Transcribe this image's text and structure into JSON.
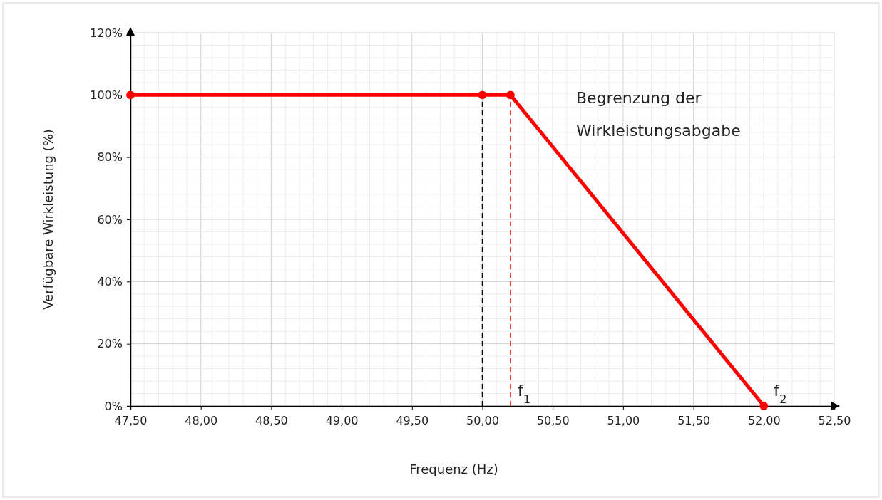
{
  "chart_data": {
    "type": "line",
    "xlabel": "Frequenz (Hz)",
    "ylabel": "Verfügbare Wirkleistung (%)",
    "x": [
      47.5,
      50.0,
      50.2,
      52.0
    ],
    "series": [
      {
        "color": "#ff0000",
        "values": [
          100,
          100,
          100,
          0
        ]
      }
    ],
    "xlim": [
      47.5,
      52.5
    ],
    "xticks": [
      {
        "value": 47.5,
        "label": "47,50"
      },
      {
        "value": 48,
        "label": "48,00"
      },
      {
        "value": 48.5,
        "label": "48,50"
      },
      {
        "value": 49,
        "label": "49,00"
      },
      {
        "value": 49.5,
        "label": "49,50"
      },
      {
        "value": 50,
        "label": "50,00"
      },
      {
        "value": 50.5,
        "label": "50,50"
      },
      {
        "value": 51,
        "label": "51,00"
      },
      {
        "value": 51.5,
        "label": "51,50"
      },
      {
        "value": 52,
        "label": "52,00"
      },
      {
        "value": 52.5,
        "label": "52,50"
      }
    ],
    "ylim": [
      0,
      120
    ],
    "yticks": [
      {
        "value": 0,
        "label": "0%"
      },
      {
        "value": 20,
        "label": "20%"
      },
      {
        "value": 40,
        "label": "40%"
      },
      {
        "value": 60,
        "label": "60%"
      },
      {
        "value": 80,
        "label": "80%"
      },
      {
        "value": 100,
        "label": "100%"
      },
      {
        "value": 120,
        "label": "120%"
      }
    ],
    "grid": true,
    "marker": "circle",
    "line_style": "solid",
    "ref_lines": [
      {
        "axis": "x",
        "value": 50.0,
        "color": "#000000",
        "line_style": "dashed"
      },
      {
        "axis": "x",
        "value": 50.2,
        "label": "f$_{1}$",
        "color": "#ff0000",
        "line_style": "dashed"
      }
    ],
    "annotations": [
      "Begrenzung der Wirkleistungsabgabe",
      {
        "text": "f$_{2}$",
        "x": 52.0,
        "y": 0
      }
    ]
  }
}
